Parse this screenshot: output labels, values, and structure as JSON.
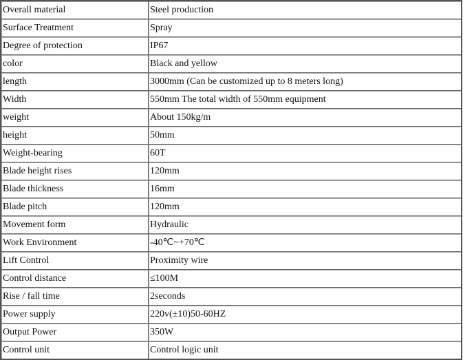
{
  "rows": [
    {
      "label": "Overall material",
      "value": "Steel production"
    },
    {
      "label": "Surface Treatment",
      "value": "Spray"
    },
    {
      "label": "Degree of protection",
      "value": "IP67"
    },
    {
      "label": "color",
      "value": "Black and yellow"
    },
    {
      "label": "length",
      "value": "3000mm (Can be customized up to 8 meters long)"
    },
    {
      "label": "Width",
      "value": "550mm The total width of 550mm equipment"
    },
    {
      "label": "weight",
      "value": "About 150kg/m"
    },
    {
      "label": "height",
      "value": "50mm"
    },
    {
      "label": "Weight-bearing",
      "value": "60T"
    },
    {
      "label": "Blade height rises",
      "value": "120mm"
    },
    {
      "label": "Blade thickness",
      "value": "16mm"
    },
    {
      "label": "Blade pitch",
      "value": "120mm"
    },
    {
      "label": "Movement form",
      "value": "Hydraulic"
    },
    {
      "label": "Work Environment",
      "value": "-40℃~+70℃"
    },
    {
      "label": "Lift Control",
      "value": "Proximity wire"
    },
    {
      "label": "Control distance",
      "value": "≤100M"
    },
    {
      "label": "Rise / fall time",
      "value": "2seconds"
    },
    {
      "label": "Power supply",
      "value": "220v(±10)50-60HZ"
    },
    {
      "label": "Output Power",
      "value": "350W"
    },
    {
      "label": "Control unit",
      "value": "Control logic unit"
    }
  ]
}
